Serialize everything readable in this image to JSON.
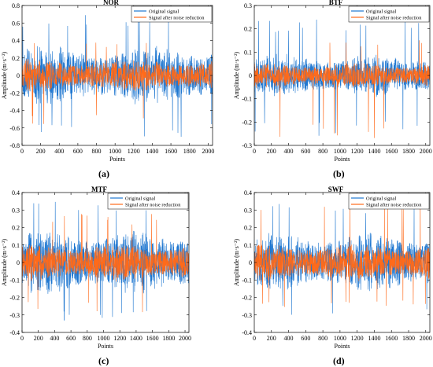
{
  "colors": {
    "original": "#1f77d0",
    "reduced": "#ff6a1a",
    "axis": "#000000"
  },
  "captions": [
    "(a)",
    "(b)",
    "(c)",
    "(d)"
  ],
  "chart_data": [
    {
      "type": "line",
      "title": "NOR",
      "xlabel": "Points",
      "ylabel": "Amplitude (m·s⁻²)",
      "xlim": [
        0,
        2048
      ],
      "ylim": [
        -0.8,
        0.8
      ],
      "xticks": [
        0,
        200,
        400,
        600,
        800,
        1000,
        1200,
        1400,
        1600,
        1800,
        2000
      ],
      "yticks": [
        -0.8,
        -0.6,
        -0.4,
        -0.2,
        0,
        0.2,
        0.4,
        0.6,
        0.8
      ],
      "series": [
        {
          "name": "Original signal",
          "amplitude": 0.22,
          "peak": 0.7,
          "peak_min": -0.72
        },
        {
          "name": "Signal after noise reduction",
          "amplitude": 0.12,
          "peak": 0.4,
          "peak_min": -0.57
        }
      ]
    },
    {
      "type": "line",
      "title": "BTF",
      "xlabel": "Points",
      "ylabel": "Amplitude (m·s⁻²)",
      "xlim": [
        0,
        2048
      ],
      "ylim": [
        -0.3,
        0.3
      ],
      "xticks": [
        0,
        200,
        400,
        600,
        800,
        1000,
        1200,
        1400,
        1600,
        1800,
        2000
      ],
      "yticks": [
        -0.3,
        -0.2,
        -0.1,
        0,
        0.1,
        0.2,
        0.3
      ],
      "series": [
        {
          "name": "Original signal",
          "amplitude": 0.06,
          "peak": 0.24,
          "peak_min": -0.26
        },
        {
          "name": "Signal after noise reduction",
          "amplitude": 0.035,
          "peak": 0.16,
          "peak_min": -0.27
        }
      ]
    },
    {
      "type": "line",
      "title": "MTF",
      "xlabel": "Points",
      "ylabel": "Amplitude (m·s⁻²)",
      "xlim": [
        0,
        2048
      ],
      "ylim": [
        -0.4,
        0.4
      ],
      "xticks": [
        0,
        200,
        400,
        600,
        800,
        1000,
        1200,
        1400,
        1600,
        1800,
        2000
      ],
      "yticks": [
        -0.4,
        -0.3,
        -0.2,
        -0.1,
        0,
        0.1,
        0.2,
        0.3,
        0.4
      ],
      "series": [
        {
          "name": "Original signal",
          "amplitude": 0.12,
          "peak": 0.36,
          "peak_min": -0.36
        },
        {
          "name": "Signal after noise reduction",
          "amplitude": 0.07,
          "peak": 0.28,
          "peak_min": -0.3
        }
      ]
    },
    {
      "type": "line",
      "title": "SWF",
      "xlabel": "Points",
      "ylabel": "Amplitude (m·s⁻²)",
      "xlim": [
        0,
        2048
      ],
      "ylim": [
        -0.4,
        0.4
      ],
      "xticks": [
        0,
        200,
        400,
        600,
        800,
        1000,
        1200,
        1400,
        1600,
        1800,
        2000
      ],
      "yticks": [
        -0.4,
        -0.3,
        -0.2,
        -0.1,
        0,
        0.1,
        0.2,
        0.3,
        0.4
      ],
      "series": [
        {
          "name": "Original signal",
          "amplitude": 0.11,
          "peak": 0.36,
          "peak_min": -0.31
        },
        {
          "name": "Signal after noise reduction",
          "amplitude": 0.07,
          "peak": 0.38,
          "peak_min": -0.28
        }
      ]
    }
  ]
}
